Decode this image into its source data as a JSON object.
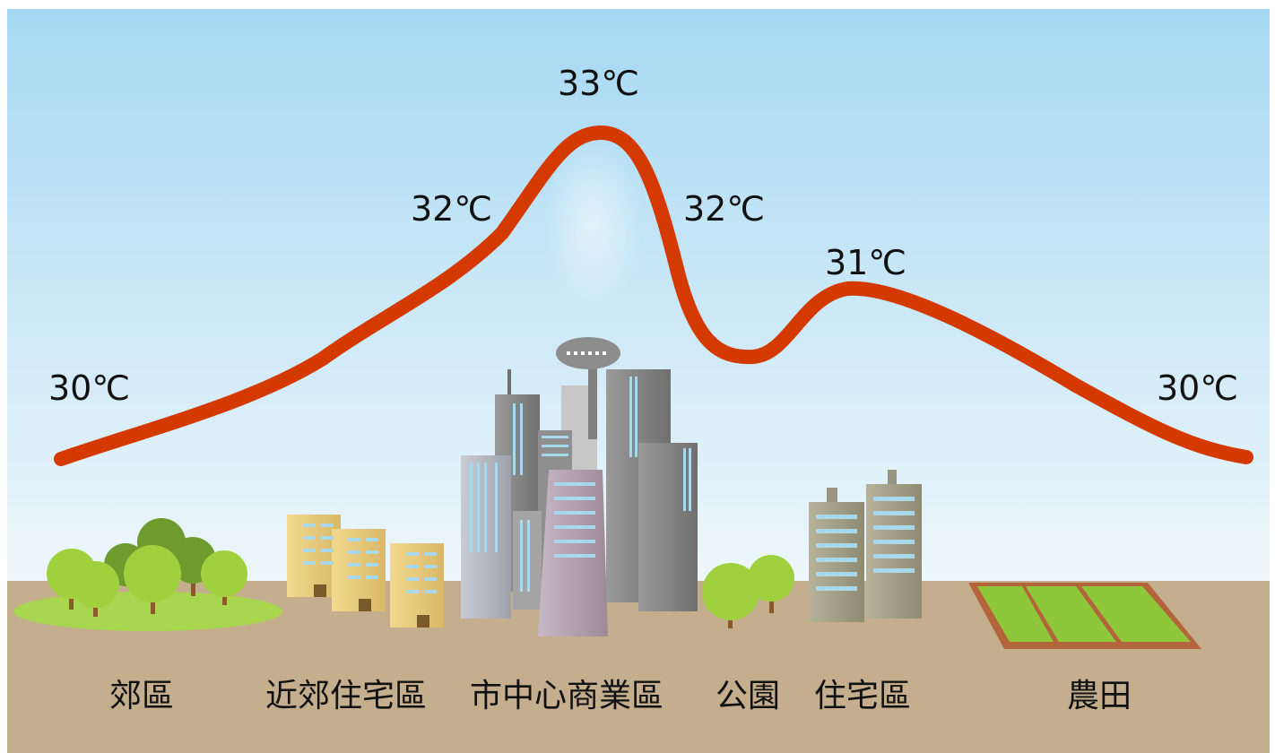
{
  "temperature_labels": {
    "suburb": "30℃",
    "near_suburb": "32℃",
    "center": "33℃",
    "park_side": "32℃",
    "residential": "31℃",
    "farmland": "30℃"
  },
  "zone_labels": {
    "suburb": "郊區",
    "near_suburb_residential": "近郊住宅區",
    "downtown_commercial": "市中心商業區",
    "park": "公園",
    "residential": "住宅區",
    "farmland": "農田"
  },
  "colors": {
    "curve": "#d43a00",
    "sky_top": "#a6d8f3",
    "sky_bottom": "#eaf5fb",
    "ground": "#c4ae8e",
    "tree_light": "#9ed13d",
    "tree_dark": "#6d9b2e",
    "farm_green": "#8ec73a",
    "farm_border": "#b4643a"
  }
}
